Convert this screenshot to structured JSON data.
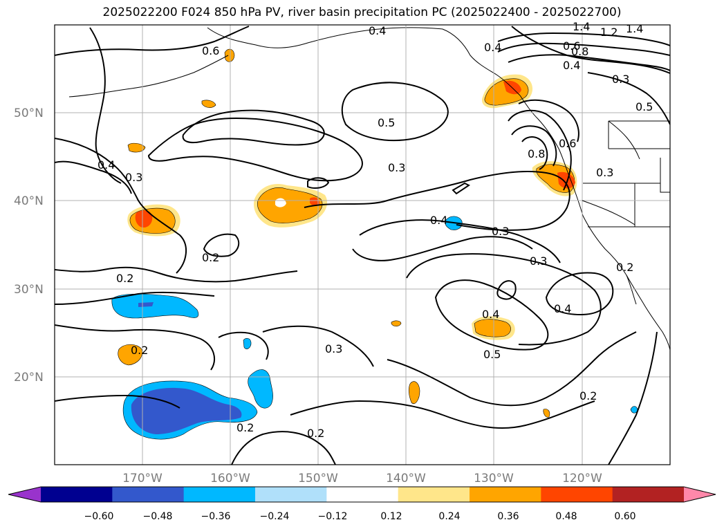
{
  "title": "2025022200 F024 850 hPa PV, river basin precipitation PC (2025022400 - 2025022700)",
  "map": {
    "lat_labels": [
      "50°N",
      "40°N",
      "30°N",
      "20°N"
    ],
    "lon_labels": [
      "170°W",
      "160°W",
      "150°W",
      "140°W",
      "130°W",
      "120°W"
    ],
    "gridlines": true
  },
  "contour_labels": [
    "0.4",
    "0.6",
    "1.4",
    "1.2",
    "1.4",
    "0.4",
    "0.6",
    "0.8",
    "0.4",
    "0.3",
    "0.5",
    "0.5",
    "0.3",
    "0.4",
    "0.3",
    "0.4",
    "0.3",
    "0.8",
    "0.6",
    "0.3",
    "0.4",
    "0.2",
    "0.2",
    "0.3",
    "0.4",
    "0.5",
    "0.2",
    "0.2",
    "0.2",
    "0.2",
    "0.3",
    "0.2"
  ],
  "colorbar": {
    "ticks": [
      "−0.60",
      "−0.48",
      "−0.36",
      "−0.24",
      "−0.12",
      "0.12",
      "0.24",
      "0.36",
      "0.48",
      "0.60"
    ],
    "colors": [
      "#9933cc",
      "#000090",
      "#3358cc",
      "#00b8ff",
      "#b0e0fa",
      "#ffffff",
      "#ffe68a",
      "#ffa500",
      "#ff4500",
      "#b22222",
      "#ff88aa"
    ]
  }
}
